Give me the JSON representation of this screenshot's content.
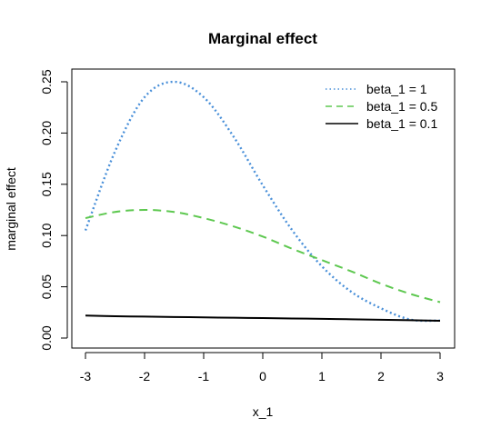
{
  "chart_data": {
    "type": "line",
    "title": "Marginal effect",
    "xlabel": "x_1",
    "ylabel": "marginal effect",
    "xlim": [
      -3,
      3
    ],
    "ylim": [
      0,
      0.25
    ],
    "xticks": [
      -3,
      -2,
      -1,
      0,
      1,
      2,
      3
    ],
    "xtick_labels": [
      "-3",
      "-2",
      "-1",
      "0",
      "1",
      "2",
      "3"
    ],
    "yticks": [
      0,
      0.05,
      0.1,
      0.15,
      0.2,
      0.25
    ],
    "ytick_labels": [
      "0.00",
      "0.05",
      "0.10",
      "0.15",
      "0.20",
      "0.25"
    ],
    "grid": false,
    "legend_position": "top-right",
    "x": [
      -3,
      -2.5,
      -2,
      -1.5,
      -1,
      -0.5,
      0,
      0.5,
      1,
      1.5,
      2,
      2.5,
      3
    ],
    "series": [
      {
        "name": "beta_1 = 1",
        "color": "#4a90d9",
        "style": "dotted",
        "values": [
          0.105,
          0.182,
          0.235,
          0.25,
          0.235,
          0.197,
          0.149,
          0.105,
          0.07,
          0.045,
          0.029,
          0.018,
          0.017
        ]
      },
      {
        "name": "beta_1 = 0.5",
        "color": "#5ec850",
        "style": "dashed",
        "values": [
          0.117,
          0.123,
          0.125,
          0.123,
          0.117,
          0.109,
          0.099,
          0.087,
          0.076,
          0.065,
          0.053,
          0.043,
          0.035
        ]
      },
      {
        "name": "beta_1 = 0.1",
        "color": "#000000",
        "style": "solid",
        "values": [
          0.0219,
          0.0213,
          0.0209,
          0.0205,
          0.0202,
          0.0198,
          0.0195,
          0.0191,
          0.0187,
          0.0183,
          0.0178,
          0.0174,
          0.0169
        ]
      }
    ]
  }
}
